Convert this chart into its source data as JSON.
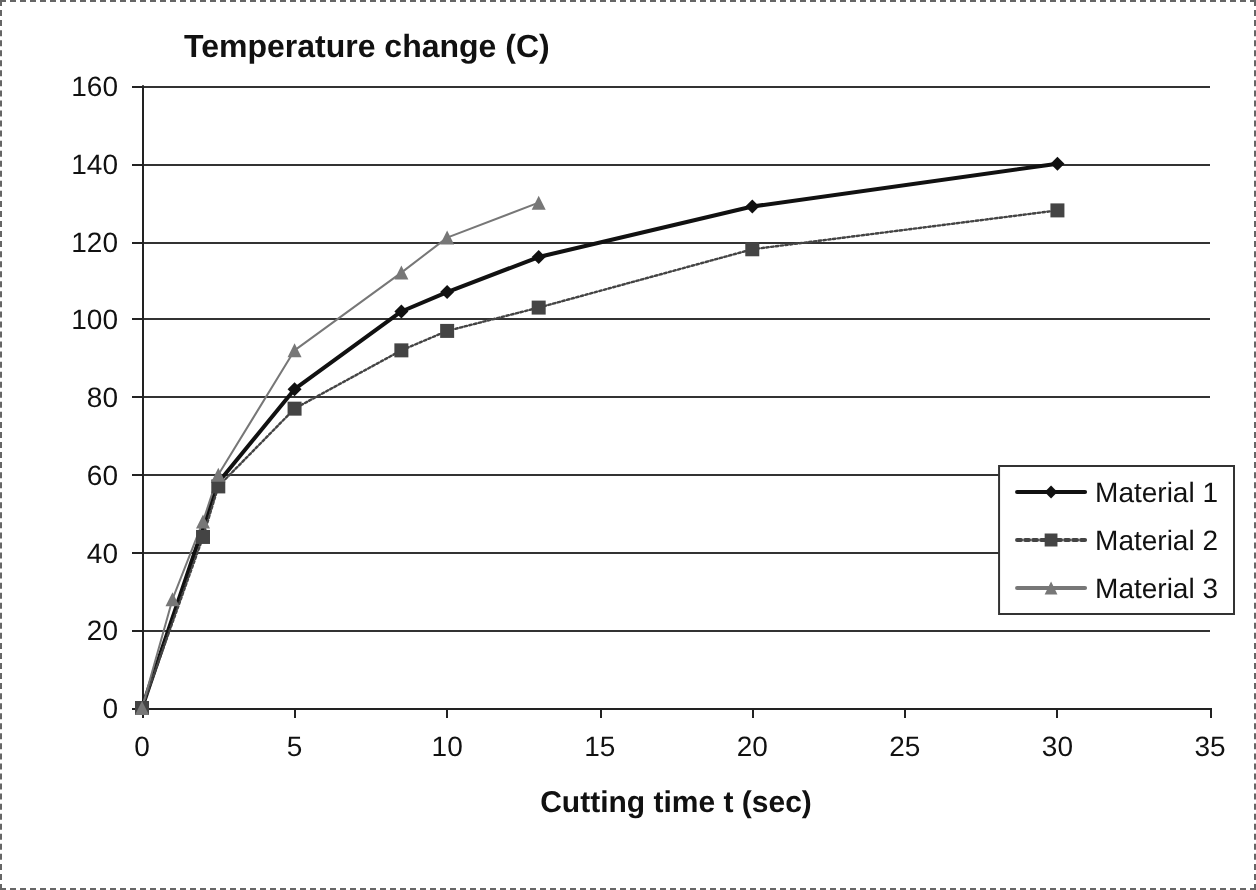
{
  "chart_data": {
    "type": "line",
    "title": "Temperature change (C)",
    "xlabel": "Cutting time t (sec)",
    "xlim": [
      0,
      35
    ],
    "xticks": [
      0,
      5,
      10,
      15,
      20,
      25,
      30,
      35
    ],
    "ylim": [
      0,
      160
    ],
    "yticks": [
      0,
      20,
      40,
      60,
      80,
      100,
      120,
      140,
      160
    ],
    "grid": "y",
    "legend": "right",
    "series": [
      {
        "name": "Material 1",
        "color": "#111111",
        "marker": "diamond",
        "line_style": "solid",
        "x": [
          0,
          2.5,
          5,
          8.5,
          10,
          13,
          20,
          30
        ],
        "values": [
          0,
          58,
          82,
          102,
          107,
          116,
          129,
          140
        ]
      },
      {
        "name": "Material 2",
        "color": "#444444",
        "marker": "square",
        "line_style": "dotted",
        "x": [
          0,
          2,
          2.5,
          5,
          8.5,
          10,
          13,
          20,
          30
        ],
        "values": [
          0,
          44,
          57,
          77,
          92,
          97,
          103,
          118,
          128
        ]
      },
      {
        "name": "Material 3",
        "color": "#777777",
        "marker": "triangle",
        "line_style": "solid",
        "x": [
          0,
          1,
          2,
          2.5,
          5,
          8.5,
          10,
          13
        ],
        "values": [
          0,
          28,
          48,
          60,
          92,
          112,
          121,
          130
        ]
      }
    ]
  }
}
